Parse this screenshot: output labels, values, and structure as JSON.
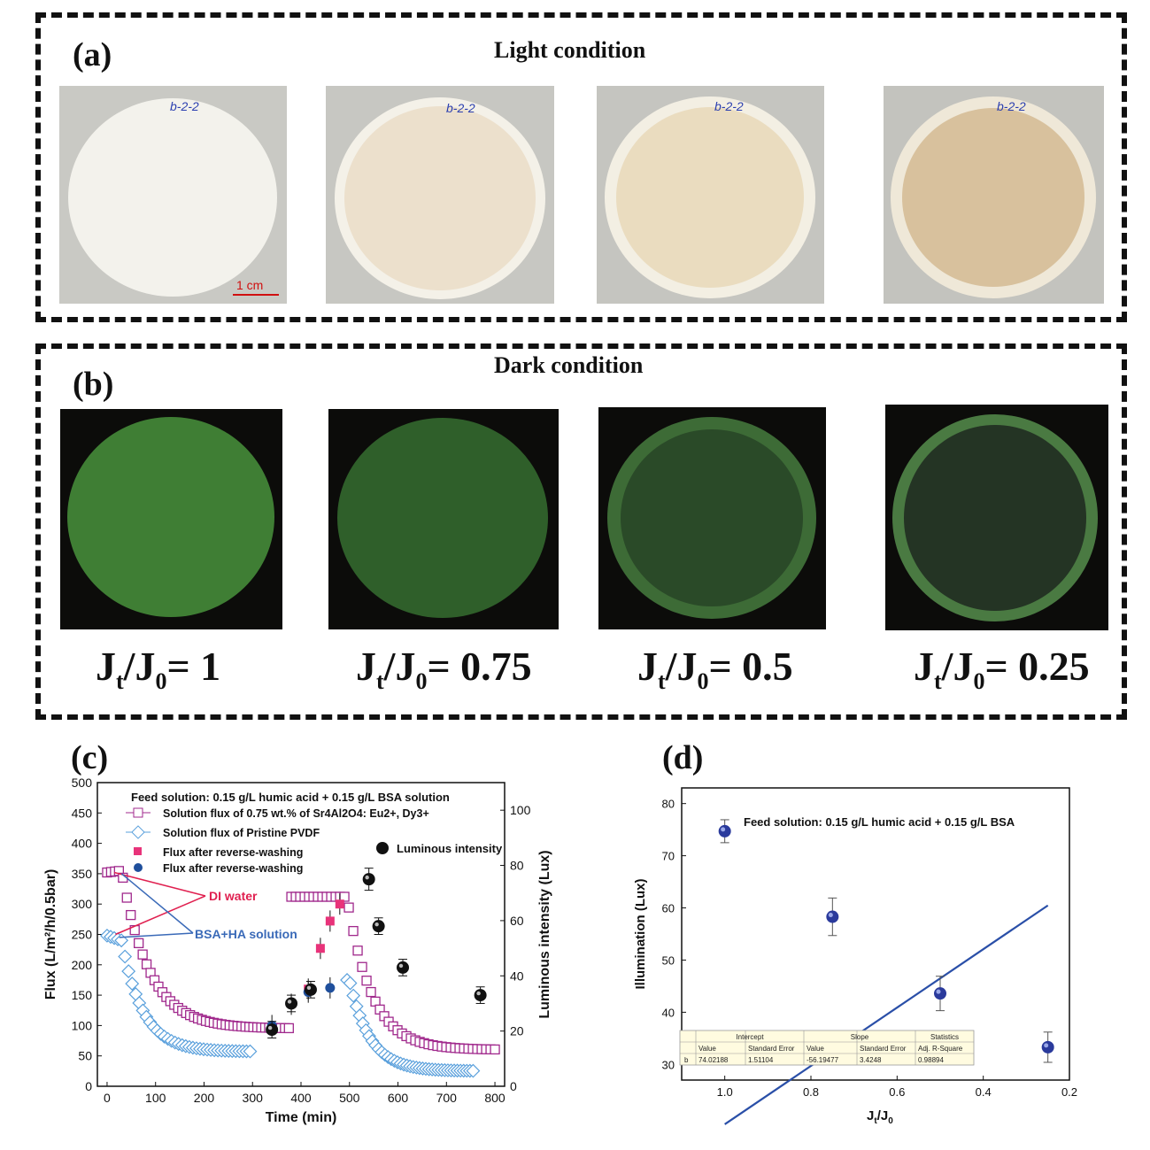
{
  "panel_a": {
    "label": "(a)",
    "title": "Light condition",
    "photo_tag": "b-2-2",
    "scale_bar": "1 cm",
    "membrane_tints": [
      "#f3f2ec",
      "#ece0cc",
      "#eadcbf",
      "#d8c19d"
    ]
  },
  "panel_b": {
    "label": "(b)",
    "title": "Dark condition",
    "glow_colors": [
      "#3f7e34",
      "#2f5f2a",
      "#2a4a28",
      "#243424"
    ],
    "ratio_prefix": "J",
    "ratio_sub_t": "t",
    "ratio_slash": "/J",
    "ratio_sub_0": "0",
    "ratios": [
      "= 1",
      "= 0.75",
      "= 0.5",
      "= 0.25"
    ]
  },
  "panel_c": {
    "label": "(c)",
    "chart_data": {
      "type": "scatter",
      "title": "Feed solution: 0.15 g/L humic acid + 0.15 g/L BSA solution",
      "xlabel": "Time (min)",
      "ylabel": "Flux (L/m²/h/0.5bar)",
      "y2label": "Luminous intensity (Lux)",
      "xlim": [
        -20,
        820
      ],
      "ylim": [
        0,
        500
      ],
      "y2lim": [
        0,
        110
      ],
      "xticks": [
        "0",
        "100",
        "200",
        "300",
        "400",
        "500",
        "600",
        "700",
        "800"
      ],
      "yticks": [
        "0",
        "50",
        "100",
        "150",
        "200",
        "250",
        "300",
        "350",
        "400",
        "450",
        "500"
      ],
      "y2ticks": [
        "0",
        "20",
        "40",
        "60",
        "80",
        "100"
      ],
      "legend": [
        "Solution flux of 0.75 wt.% of Sr4Al2O4: Eu2+, Dy3+",
        "Solution flux of Pristine PVDF",
        "Flux after reverse-washing",
        "Flux after reverse-washing",
        "Luminous intensity"
      ],
      "annotations": [
        "DI water",
        "BSA+HA solution"
      ],
      "colors": {
        "doped": "#a0288c",
        "pristine": "#5aa0dc",
        "pink": "#e8337a",
        "blue": "#1f4f9c",
        "annot_red": "#e02050",
        "annot_blue": "#3a6ab8"
      },
      "series": [
        {
          "name": "Solution flux of 0.75 wt.% of Sr4Al2O4: Eu2+, Dy3+",
          "segments": [
            {
              "t0": 0,
              "t1": 375,
              "y0": 352,
              "ymid": 355,
              "drop_at": 30,
              "ylow": 175,
              "yend": 95
            },
            {
              "t0": 380,
              "t1": 800,
              "y0": 312,
              "ymid": 312,
              "drop_at": 495,
              "ylow": 200,
              "yend": 60
            }
          ]
        },
        {
          "name": "Solution flux of Pristine PVDF",
          "segments": [
            {
              "t0": 0,
              "t1": 295,
              "y0": 248,
              "ymid": 240,
              "drop_at": 30,
              "ylow": 110,
              "yend": 57
            },
            {
              "t0": 495,
              "t1": 755,
              "y0": 175,
              "ymid": 175,
              "drop_at": 500,
              "ylow": 80,
              "yend": 25
            }
          ]
        },
        {
          "name": "Flux after reverse-washing",
          "points": [
            [
              415,
              160
            ],
            [
              440,
              227
            ],
            [
              460,
              272
            ],
            [
              480,
              300
            ]
          ]
        },
        {
          "name": "Flux after reverse-washing",
          "points": [
            [
              340,
              100
            ],
            [
              380,
              135
            ],
            [
              415,
              155
            ],
            [
              460,
              162
            ]
          ]
        },
        {
          "name": "Luminous intensity",
          "points": [
            [
              340,
              20.5,
              3
            ],
            [
              380,
              30,
              3
            ],
            [
              420,
              35,
              3
            ],
            [
              540,
              75,
              4
            ],
            [
              560,
              58,
              3
            ],
            [
              610,
              43,
              3
            ],
            [
              770,
              33,
              3
            ]
          ]
        }
      ]
    }
  },
  "panel_d": {
    "label": "(d)",
    "chart_data": {
      "type": "scatter",
      "title": "Feed solution: 0.15 g/L humic acid + 0.15 g/L BSA",
      "xlabel": "Jt/J0",
      "ylabel": "Illumination (Lux)",
      "xlim": [
        1.1,
        0.2
      ],
      "ylim": [
        27,
        83
      ],
      "xticks": [
        "1.0",
        "0.8",
        "0.6",
        "0.4",
        "0.2"
      ],
      "yticks": [
        "30",
        "40",
        "50",
        "60",
        "70",
        "80"
      ],
      "points": [
        [
          1.0,
          74.7,
          2.2
        ],
        [
          0.75,
          58.3,
          3.6
        ],
        [
          0.5,
          43.6,
          3.3
        ],
        [
          0.25,
          33.3,
          2.9
        ]
      ],
      "fit": {
        "intercept": 74.02188,
        "slope": -56.19477
      },
      "table": {
        "groups": [
          "Intercept",
          "Slope",
          "Statistics"
        ],
        "headers": [
          "Value",
          "Standard Error",
          "Value",
          "Standard Error",
          "Adj. R-Square"
        ],
        "row_label": "b",
        "values": [
          "74.02188",
          "1.51104",
          "-56.19477",
          "3.4248",
          "0.98894"
        ]
      },
      "colors": {
        "line": "#2a4fa8",
        "point": "#2a3a9c"
      }
    }
  }
}
